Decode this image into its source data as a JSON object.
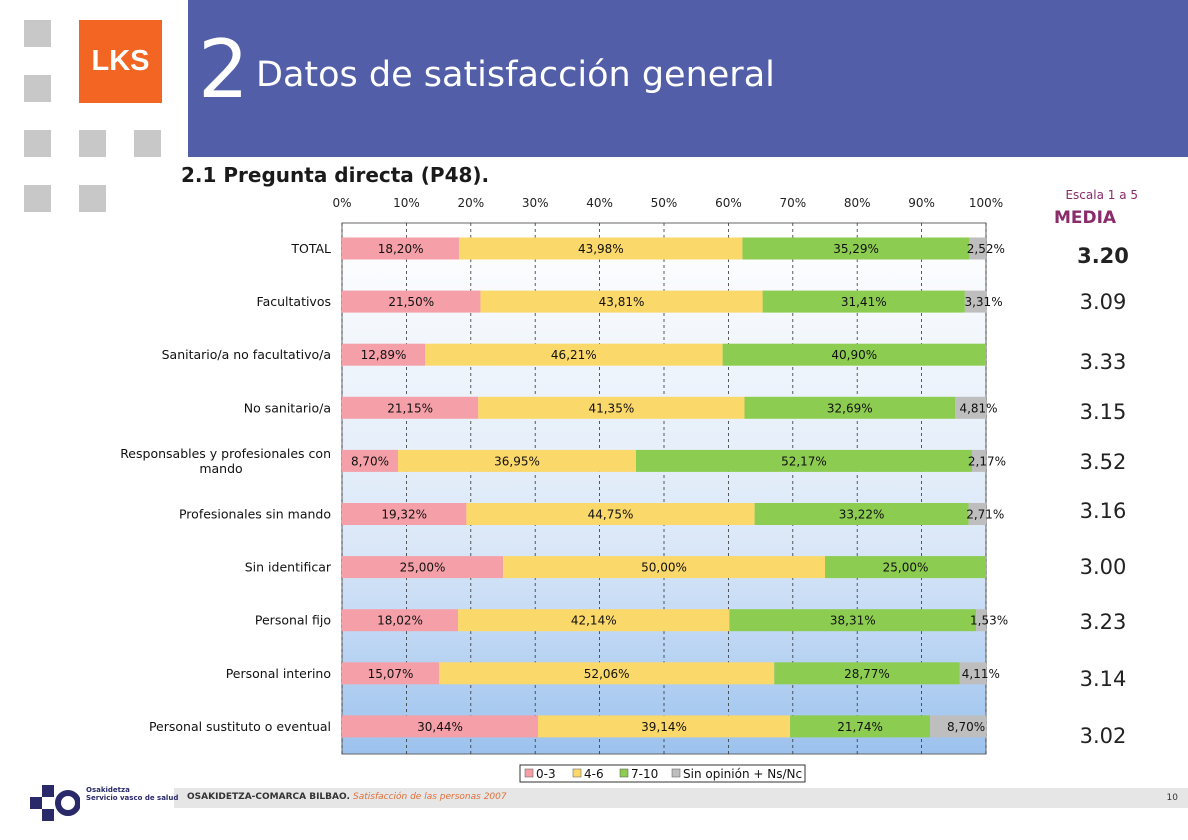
{
  "header": {
    "logo_text": "LKS",
    "section_number": "2",
    "title": "Datos de satisfacción general"
  },
  "subtitle": "2.1 Pregunta directa (P48).",
  "media_panel": {
    "scale_note": "Escala 1 a 5",
    "header": "MEDIA",
    "values": [
      "3.20",
      "3.09",
      "3.33",
      "3.15",
      "3.52",
      "3.16",
      "3.00",
      "3.23",
      "3.14",
      "3.02"
    ]
  },
  "chart_data": {
    "type": "bar",
    "orientation": "horizontal",
    "stacked": true,
    "percent_stacked": true,
    "categories": [
      "TOTAL",
      "Facultativos",
      "Sanitario/a no facultativo/a",
      "No sanitario/a",
      "Responsables y profesionales con mando",
      "Profesionales sin mando",
      "Sin identificar",
      "Personal fijo",
      "Personal interino",
      "Personal sustituto o eventual"
    ],
    "series": [
      {
        "name": "0-3",
        "values": [
          18.2,
          21.5,
          12.89,
          21.15,
          8.7,
          19.32,
          25.0,
          18.02,
          15.07,
          30.44
        ],
        "labels": [
          "18,20%",
          "21,50%",
          "12,89%",
          "21,15%",
          "8,70%",
          "19,32%",
          "25,00%",
          "18,02%",
          "15,07%",
          "30,44%"
        ]
      },
      {
        "name": "4-6",
        "values": [
          43.98,
          43.81,
          46.21,
          41.35,
          36.95,
          44.75,
          50.0,
          42.14,
          52.06,
          39.14
        ],
        "labels": [
          "43,98%",
          "43,81%",
          "46,21%",
          "41,35%",
          "36,95%",
          "44,75%",
          "50,00%",
          "42,14%",
          "52,06%",
          "39,14%"
        ]
      },
      {
        "name": "7-10",
        "values": [
          35.29,
          31.41,
          40.9,
          32.69,
          52.17,
          33.22,
          25.0,
          38.31,
          28.77,
          21.74
        ],
        "labels": [
          "35,29%",
          "31,41%",
          "40,90%",
          "32,69%",
          "52,17%",
          "33,22%",
          "25,00%",
          "38,31%",
          "28,77%",
          "21,74%"
        ]
      },
      {
        "name": "Sin opinión + Ns/Nc",
        "values": [
          2.52,
          3.31,
          0,
          4.81,
          2.17,
          2.71,
          0,
          1.53,
          4.11,
          8.7
        ],
        "labels": [
          "2,52%",
          "3,31%",
          "",
          "4,81%",
          "2,17%",
          "2,71%",
          "",
          "1,53%",
          "4,11%",
          "8,70%"
        ]
      }
    ],
    "xlim": [
      0,
      100
    ],
    "xticks": [
      "0%",
      "10%",
      "20%",
      "30%",
      "40%",
      "50%",
      "60%",
      "70%",
      "80%",
      "90%",
      "100%"
    ],
    "grid": true,
    "legend": "bottom",
    "colors": [
      "#f5a0a8",
      "#fbd86a",
      "#8ccc50",
      "#bebebe"
    ]
  },
  "footer": {
    "org": "OSAKIDETZA-COMARCA BILBAO.",
    "subtitle": "Satisfacción de las personas 2007",
    "page_number": "10",
    "osakidetza_line1": "Osakidetza",
    "osakidetza_line2": "Servicio vasco de salud"
  }
}
